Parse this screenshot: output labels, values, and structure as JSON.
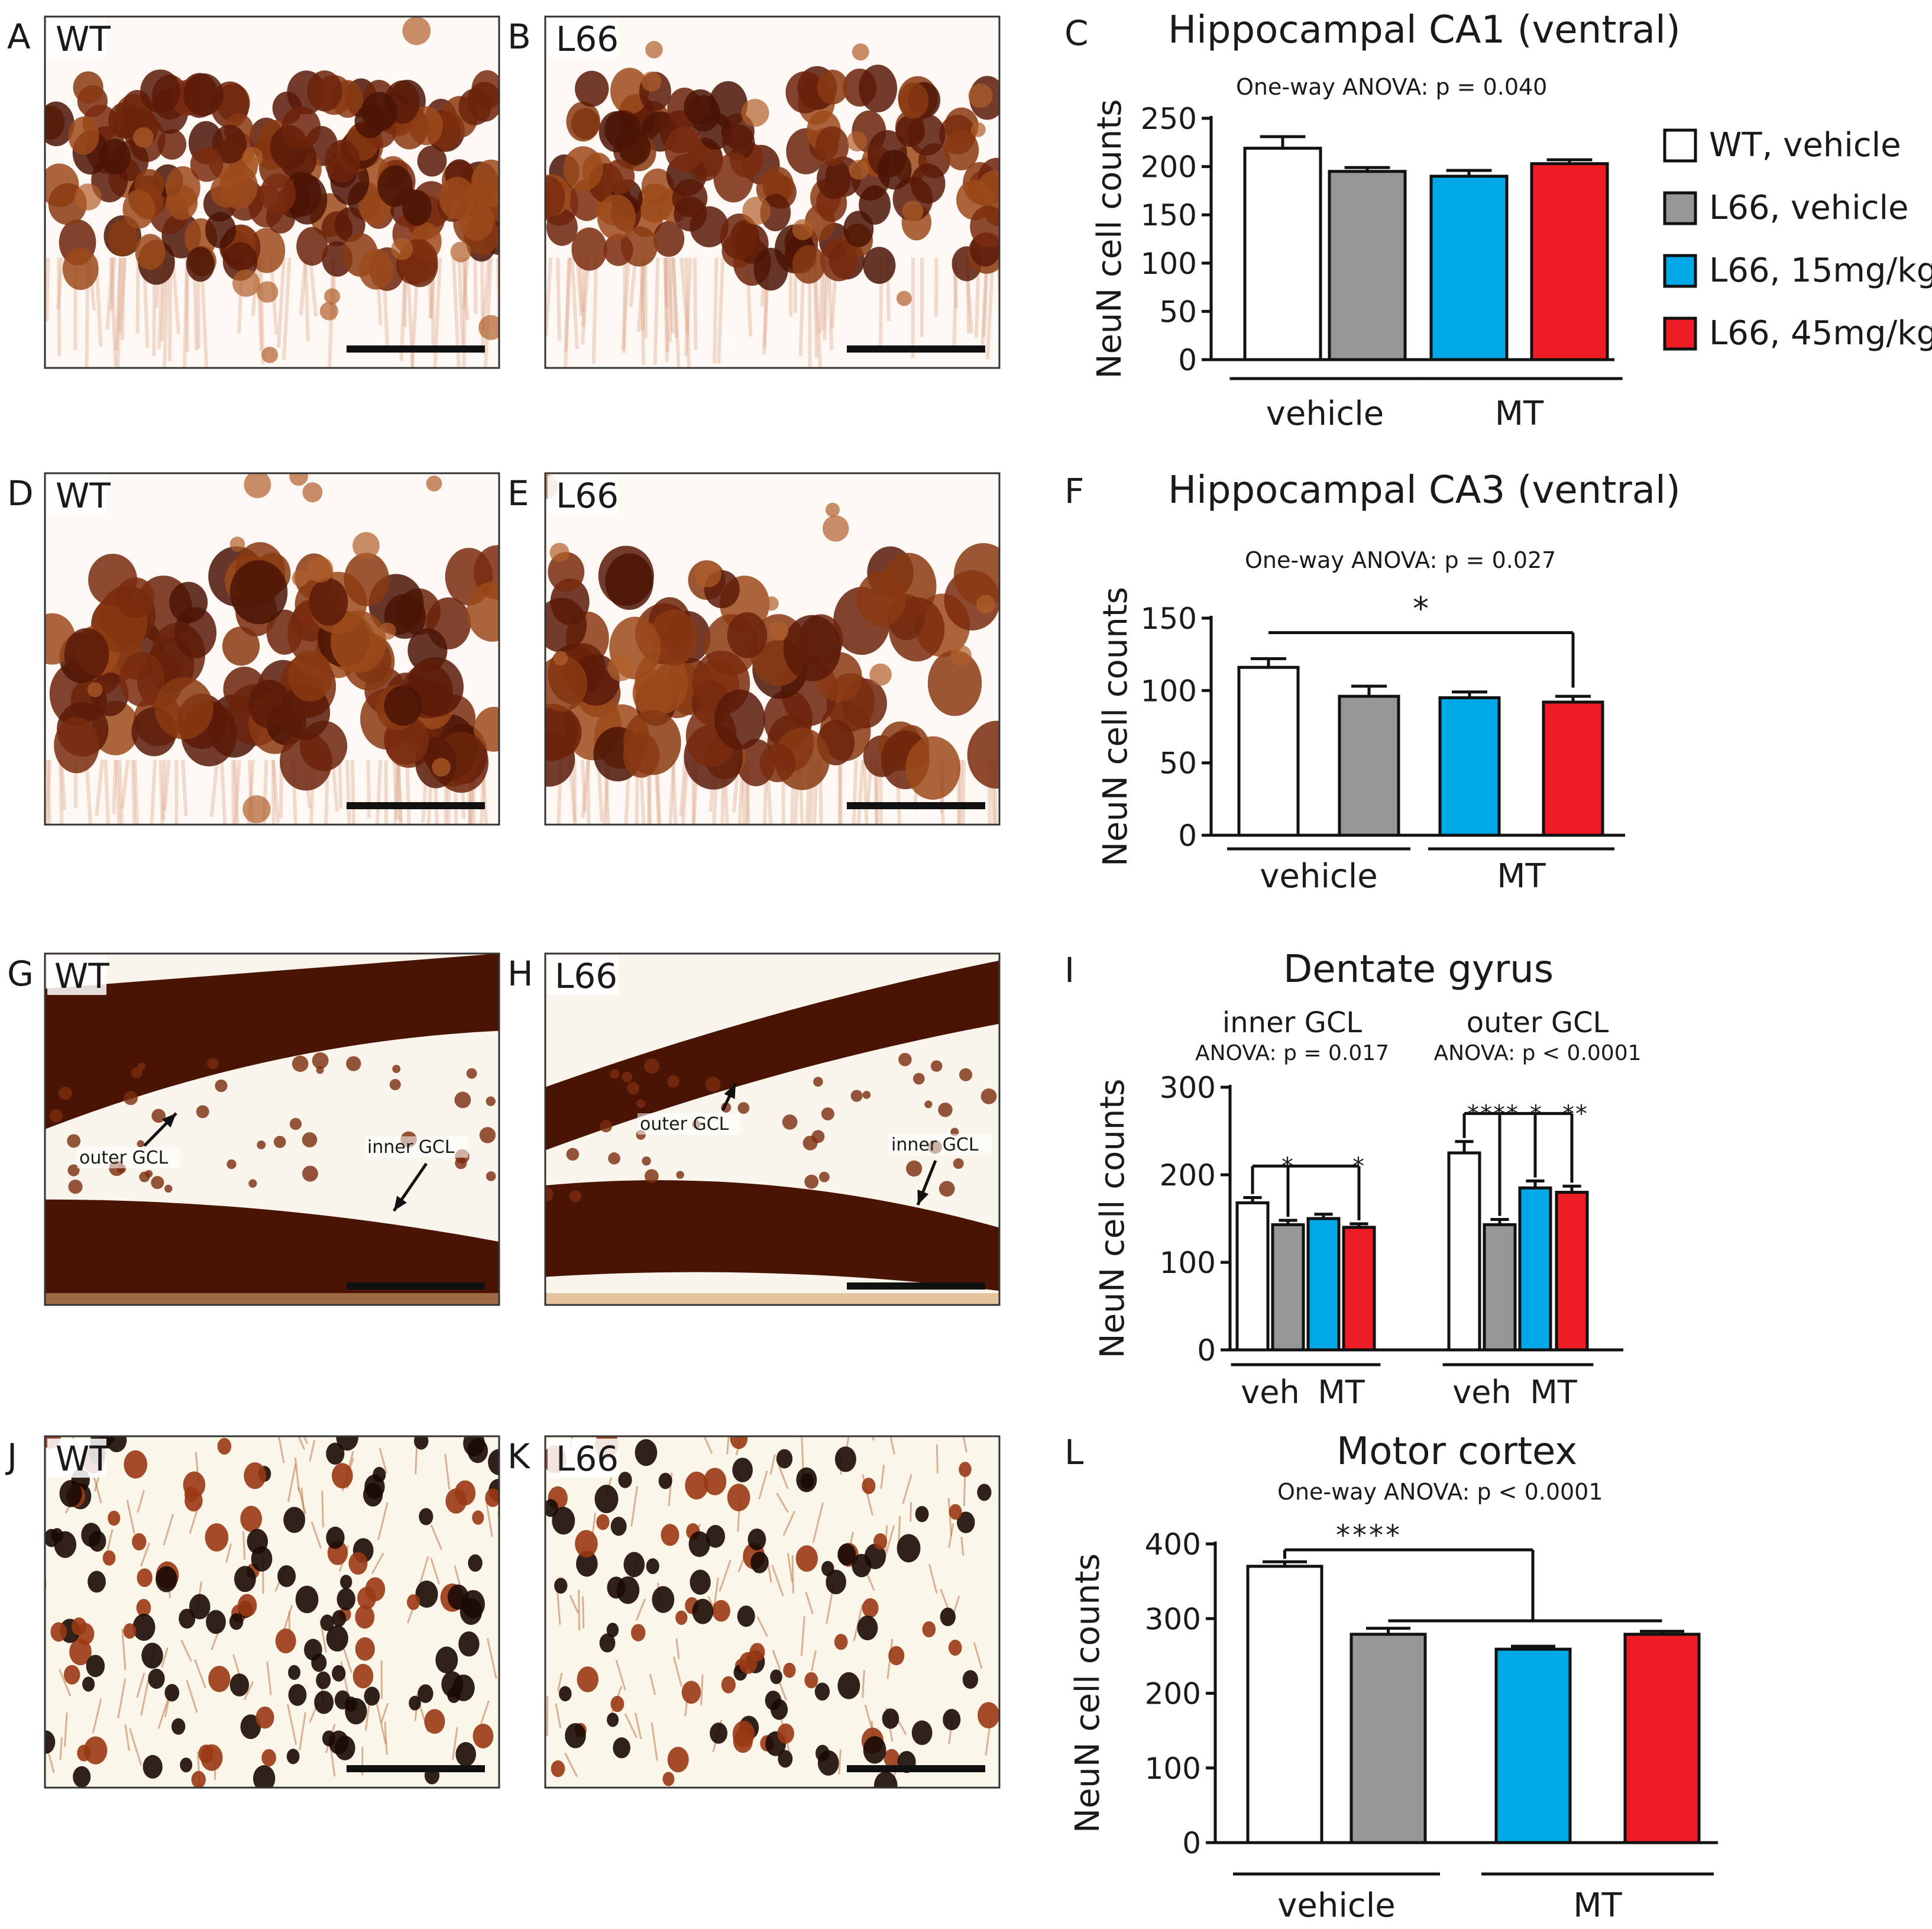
{
  "micrographs": [
    {
      "letter": "A",
      "label": "WT",
      "style": "ca1-wt"
    },
    {
      "letter": "B",
      "label": "L66",
      "style": "ca1-l66"
    },
    {
      "letter": "D",
      "label": "WT",
      "style": "ca3-wt"
    },
    {
      "letter": "E",
      "label": "L66",
      "style": "ca3-l66"
    },
    {
      "letter": "G",
      "label": "WT",
      "style": "dg-wt",
      "annotations": [
        {
          "text": "outer GCL"
        },
        {
          "text": "inner GCL"
        }
      ]
    },
    {
      "letter": "H",
      "label": "L66",
      "style": "dg-l66",
      "annotations": [
        {
          "text": "outer GCL"
        },
        {
          "text": "inner GCL"
        }
      ]
    },
    {
      "letter": "J",
      "label": "WT",
      "style": "cortex-wt"
    },
    {
      "letter": "K",
      "label": "L66",
      "style": "cortex-l66"
    }
  ],
  "legend": [
    {
      "label": "WT, vehicle",
      "color": "#ffffff"
    },
    {
      "label": "L66, vehicle",
      "color": "#969696"
    },
    {
      "label": "L66, 15mg/kg",
      "color": "#00a8e8"
    },
    {
      "label": "L66, 45mg/kg",
      "color": "#ee1c25"
    }
  ],
  "chart_data": [
    {
      "panel": "C",
      "type": "bar",
      "title": "Hippocampal CA1 (ventral)",
      "subtitle": "One-way ANOVA: p = 0.040",
      "ylabel": "NeuN cell counts",
      "ylim": [
        0,
        250
      ],
      "yticks": [
        0,
        50,
        100,
        150,
        200,
        250
      ],
      "categories": [
        "WT, vehicle",
        "L66, vehicle",
        "L66, 15mg/kg",
        "L66, 45mg/kg"
      ],
      "values": [
        219,
        195,
        190,
        203
      ],
      "errors": [
        12,
        4,
        6,
        4
      ],
      "groups": [
        {
          "label": "vehicle",
          "bars": [
            0,
            1
          ]
        },
        {
          "label": "MT",
          "bars": [
            2,
            3
          ]
        }
      ],
      "significance": []
    },
    {
      "panel": "F",
      "type": "bar",
      "title": "Hippocampal CA3 (ventral)",
      "subtitle": "One-way ANOVA: p = 0.027",
      "ylabel": "NeuN cell counts",
      "ylim": [
        0,
        150
      ],
      "yticks": [
        0,
        50,
        100,
        150
      ],
      "categories": [
        "WT, vehicle",
        "L66, vehicle",
        "L66, 15mg/kg",
        "L66, 45mg/kg"
      ],
      "values": [
        116,
        96,
        95,
        92
      ],
      "errors": [
        6,
        7,
        4,
        4
      ],
      "groups": [
        {
          "label": "vehicle",
          "bars": [
            0,
            1
          ]
        },
        {
          "label": "MT",
          "bars": [
            2,
            3
          ]
        }
      ],
      "significance": [
        {
          "from": 0,
          "to": 3,
          "label": "*",
          "y": 140
        }
      ]
    },
    {
      "panel": "I",
      "type": "bar",
      "title": "Dentate gyrus",
      "ylabel": "NeuN cell counts",
      "ylim": [
        0,
        300
      ],
      "yticks": [
        0,
        100,
        200,
        300
      ],
      "clusters": [
        {
          "name": "inner GCL",
          "subtitle": "ANOVA: p = 0.017",
          "values": [
            168,
            143,
            150,
            140
          ],
          "errors": [
            6,
            5,
            5,
            4
          ],
          "groups": [
            {
              "label": "veh",
              "bars": [
                0,
                1
              ]
            },
            {
              "label": "MT",
              "bars": [
                2,
                3
              ]
            }
          ],
          "significance": [
            {
              "from": 0,
              "to": 1,
              "label": "*",
              "y": 210
            },
            {
              "from": 0,
              "to": 3,
              "label": "*",
              "y": 210
            }
          ]
        },
        {
          "name": "outer GCL",
          "subtitle": "ANOVA: p < 0.0001",
          "values": [
            225,
            143,
            185,
            180
          ],
          "errors": [
            13,
            6,
            8,
            7
          ],
          "groups": [
            {
              "label": "veh",
              "bars": [
                0,
                1
              ]
            },
            {
              "label": "MT",
              "bars": [
                2,
                3
              ]
            }
          ],
          "significance": [
            {
              "from": 0,
              "to": 1,
              "label": "****",
              "y": 270
            },
            {
              "from": 0,
              "to": 2,
              "label": "*",
              "y": 270
            },
            {
              "from": 0,
              "to": 3,
              "label": "**",
              "y": 270
            }
          ]
        }
      ]
    },
    {
      "panel": "L",
      "type": "bar",
      "title": "Motor cortex",
      "subtitle": "One-way ANOVA: p < 0.0001",
      "ylabel": "NeuN cell counts",
      "ylim": [
        0,
        400
      ],
      "yticks": [
        0,
        100,
        200,
        300,
        400
      ],
      "categories": [
        "WT, vehicle",
        "L66, vehicle",
        "L66, 15mg/kg",
        "L66, 45mg/kg"
      ],
      "values": [
        370,
        279,
        259,
        279
      ],
      "errors": [
        6,
        8,
        4,
        4
      ],
      "groups": [
        {
          "label": "vehicle",
          "bars": [
            0,
            1
          ]
        },
        {
          "label": "MT",
          "bars": [
            2,
            3
          ]
        }
      ],
      "significance": [
        {
          "from": 0,
          "to": "1-3",
          "label": "****",
          "y": 395
        }
      ]
    }
  ]
}
